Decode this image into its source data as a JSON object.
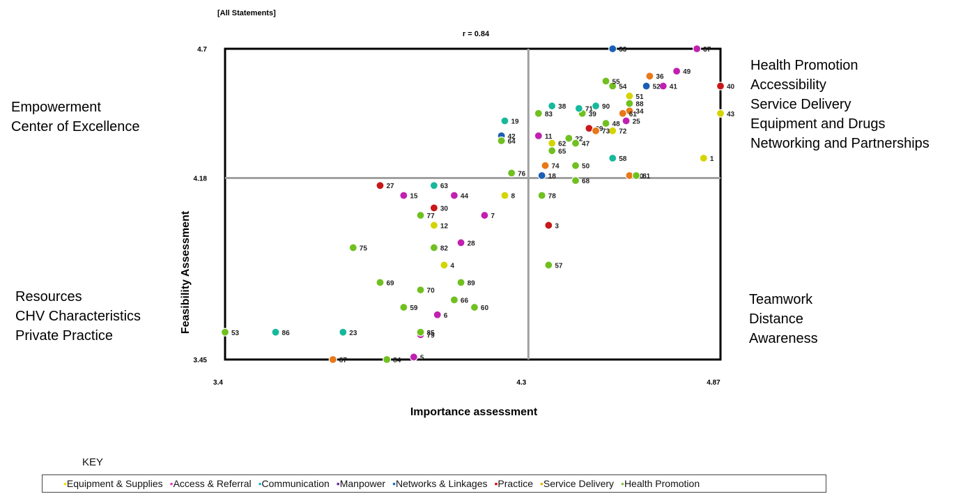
{
  "header_tag": "[All Statements]",
  "correlation": "r = 0.84",
  "quadrant_labels": {
    "top_left": [
      "Empowerment",
      "Center of Excellence"
    ],
    "top_right": [
      "Health Promotion",
      "Accessibility",
      "Service Delivery",
      "Equipment and Drugs",
      "Networking and Partnerships"
    ],
    "bottom_left": [
      "Resources",
      "CHV Characteristics",
      "Private Practice"
    ],
    "bottom_right": [
      "Teamwork",
      "Distance",
      "Awareness"
    ]
  },
  "legend": {
    "title": "KEY",
    "items": [
      {
        "label": "Equipment & Supplies",
        "color": "#f2e600"
      },
      {
        "label": "Access & Referral",
        "color": "#e640c8"
      },
      {
        "label": "Communication",
        "color": "#22b4d8"
      },
      {
        "label": "Manpower",
        "color": "#6a2a9a"
      },
      {
        "label": "Networks & Linkages",
        "color": "#1a6ac8"
      },
      {
        "label": "Practice",
        "color": "#e00000"
      },
      {
        "label": "Service Delivery",
        "color": "#f0b400"
      },
      {
        "label": "Health Promotion",
        "color": "#88c440"
      }
    ]
  },
  "chart_data": {
    "type": "scatter",
    "title": "",
    "xlabel": "Importance assessment",
    "ylabel": "Feasibility Assessment",
    "xlim": [
      3.4,
      4.87
    ],
    "ylim": [
      3.45,
      4.7
    ],
    "x_ticks": [
      "3.4",
      "4.3",
      "4.87"
    ],
    "y_ticks": [
      "4.7",
      "4.18",
      "3.45"
    ],
    "x_divider": 4.3,
    "y_divider": 4.18,
    "category_colors": {
      "equipment": "#d4d400",
      "access": "#c020b0",
      "communication": "#18b89c",
      "networks": "#1a5fb4",
      "practice": "#c81818",
      "service": "#e87818",
      "health": "#70c020"
    },
    "points": [
      {
        "label": "1",
        "x": 4.82,
        "y": 4.26,
        "cat": "equipment"
      },
      {
        "label": "3",
        "x": 4.36,
        "y": 3.99,
        "cat": "practice"
      },
      {
        "label": "4",
        "x": 4.05,
        "y": 3.83,
        "cat": "equipment"
      },
      {
        "label": "5",
        "x": 3.96,
        "y": 3.46,
        "cat": "access"
      },
      {
        "label": "6",
        "x": 4.03,
        "y": 3.63,
        "cat": "access"
      },
      {
        "label": "7",
        "x": 4.17,
        "y": 4.03,
        "cat": "access"
      },
      {
        "label": "8",
        "x": 4.23,
        "y": 4.11,
        "cat": "equipment"
      },
      {
        "label": "11",
        "x": 4.33,
        "y": 4.35,
        "cat": "access"
      },
      {
        "label": "12",
        "x": 4.02,
        "y": 3.99,
        "cat": "equipment"
      },
      {
        "label": "15",
        "x": 3.93,
        "y": 4.11,
        "cat": "access"
      },
      {
        "label": "18",
        "x": 4.34,
        "y": 4.19,
        "cat": "networks"
      },
      {
        "label": "19",
        "x": 4.23,
        "y": 4.41,
        "cat": "communication"
      },
      {
        "label": "22",
        "x": 4.42,
        "y": 4.34,
        "cat": "health"
      },
      {
        "label": "23",
        "x": 3.75,
        "y": 3.56,
        "cat": "communication"
      },
      {
        "label": "25",
        "x": 4.59,
        "y": 4.41,
        "cat": "access"
      },
      {
        "label": "27",
        "x": 3.86,
        "y": 4.15,
        "cat": "practice"
      },
      {
        "label": "28",
        "x": 4.1,
        "y": 3.92,
        "cat": "access"
      },
      {
        "label": "29",
        "x": 4.48,
        "y": 4.38,
        "cat": "practice"
      },
      {
        "label": "30",
        "x": 4.02,
        "y": 4.06,
        "cat": "practice"
      },
      {
        "label": "33",
        "x": 4.55,
        "y": 4.7,
        "cat": "networks"
      },
      {
        "label": "34",
        "x": 4.6,
        "y": 4.45,
        "cat": "service"
      },
      {
        "label": "36",
        "x": 4.66,
        "y": 4.59,
        "cat": "service"
      },
      {
        "label": "37",
        "x": 4.8,
        "y": 4.7,
        "cat": "access"
      },
      {
        "label": "38",
        "x": 4.37,
        "y": 4.47,
        "cat": "communication"
      },
      {
        "label": "39",
        "x": 4.46,
        "y": 4.44,
        "cat": "health"
      },
      {
        "label": "40",
        "x": 4.87,
        "y": 4.55,
        "cat": "practice"
      },
      {
        "label": "41",
        "x": 4.7,
        "y": 4.55,
        "cat": "access"
      },
      {
        "label": "42",
        "x": 4.22,
        "y": 4.35,
        "cat": "networks"
      },
      {
        "label": "43",
        "x": 4.87,
        "y": 4.44,
        "cat": "equipment"
      },
      {
        "label": "44",
        "x": 4.08,
        "y": 4.11,
        "cat": "access"
      },
      {
        "label": "47",
        "x": 4.44,
        "y": 4.32,
        "cat": "health"
      },
      {
        "label": "48",
        "x": 4.53,
        "y": 4.4,
        "cat": "health"
      },
      {
        "label": "49",
        "x": 4.74,
        "y": 4.61,
        "cat": "access"
      },
      {
        "label": "50",
        "x": 4.44,
        "y": 4.23,
        "cat": "health"
      },
      {
        "label": "51",
        "x": 4.6,
        "y": 4.51,
        "cat": "equipment"
      },
      {
        "label": "52",
        "x": 4.65,
        "y": 4.55,
        "cat": "networks"
      },
      {
        "label": "53",
        "x": 3.4,
        "y": 3.56,
        "cat": "health"
      },
      {
        "label": "54",
        "x": 4.55,
        "y": 4.55,
        "cat": "health"
      },
      {
        "label": "55",
        "x": 4.53,
        "y": 4.57,
        "cat": "health"
      },
      {
        "label": "57",
        "x": 4.36,
        "y": 3.83,
        "cat": "health"
      },
      {
        "label": "58",
        "x": 4.55,
        "y": 4.26,
        "cat": "communication"
      },
      {
        "label": "59",
        "x": 3.93,
        "y": 3.66,
        "cat": "health"
      },
      {
        "label": "60",
        "x": 4.14,
        "y": 3.66,
        "cat": "health"
      },
      {
        "label": "61",
        "x": 4.58,
        "y": 4.44,
        "cat": "service"
      },
      {
        "label": "62",
        "x": 4.37,
        "y": 4.32,
        "cat": "equipment"
      },
      {
        "label": "63",
        "x": 4.02,
        "y": 4.15,
        "cat": "communication"
      },
      {
        "label": "64",
        "x": 4.22,
        "y": 4.33,
        "cat": "health"
      },
      {
        "label": "65",
        "x": 4.37,
        "y": 4.29,
        "cat": "health"
      },
      {
        "label": "66",
        "x": 4.08,
        "y": 3.69,
        "cat": "health"
      },
      {
        "label": "68",
        "x": 4.44,
        "y": 4.17,
        "cat": "health"
      },
      {
        "label": "69",
        "x": 3.86,
        "y": 3.76,
        "cat": "health"
      },
      {
        "label": "70",
        "x": 3.98,
        "y": 3.73,
        "cat": "health"
      },
      {
        "label": "71",
        "x": 4.45,
        "y": 4.46,
        "cat": "communication"
      },
      {
        "label": "72",
        "x": 4.55,
        "y": 4.37,
        "cat": "equipment"
      },
      {
        "label": "73",
        "x": 4.5,
        "y": 4.37,
        "cat": "service"
      },
      {
        "label": "74",
        "x": 4.35,
        "y": 4.23,
        "cat": "service"
      },
      {
        "label": "75",
        "x": 3.78,
        "y": 3.9,
        "cat": "health"
      },
      {
        "label": "76",
        "x": 4.25,
        "y": 4.2,
        "cat": "health"
      },
      {
        "label": "77",
        "x": 3.98,
        "y": 4.03,
        "cat": "health"
      },
      {
        "label": "78",
        "x": 4.34,
        "y": 4.11,
        "cat": "health"
      },
      {
        "label": "79",
        "x": 3.98,
        "y": 3.55,
        "cat": "access"
      },
      {
        "label": "80",
        "x": 4.6,
        "y": 4.19,
        "cat": "service"
      },
      {
        "label": "81",
        "x": 4.62,
        "y": 4.19,
        "cat": "health"
      },
      {
        "label": "82",
        "x": 4.02,
        "y": 3.9,
        "cat": "health"
      },
      {
        "label": "83",
        "x": 4.33,
        "y": 4.44,
        "cat": "health"
      },
      {
        "label": "84",
        "x": 3.88,
        "y": 3.45,
        "cat": "health"
      },
      {
        "label": "85",
        "x": 3.98,
        "y": 3.56,
        "cat": "health"
      },
      {
        "label": "86",
        "x": 3.55,
        "y": 3.56,
        "cat": "communication"
      },
      {
        "label": "87",
        "x": 3.72,
        "y": 3.45,
        "cat": "service"
      },
      {
        "label": "88",
        "x": 4.6,
        "y": 4.48,
        "cat": "health"
      },
      {
        "label": "89",
        "x": 4.1,
        "y": 3.76,
        "cat": "health"
      },
      {
        "label": "90",
        "x": 4.5,
        "y": 4.47,
        "cat": "communication"
      }
    ]
  }
}
